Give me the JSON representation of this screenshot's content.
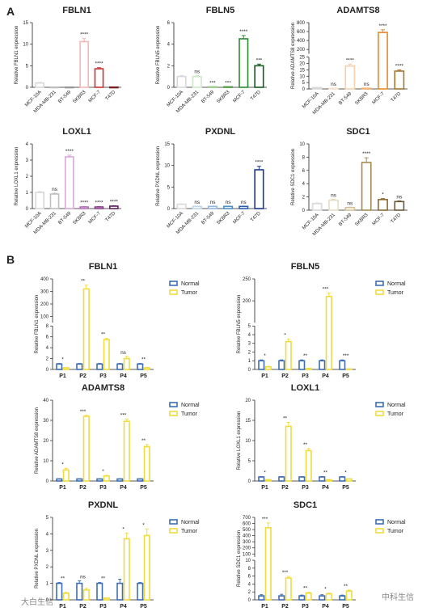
{
  "panel_labels": {
    "a": "A",
    "b": "B"
  },
  "watermarks": {
    "left": "大白生信",
    "right": "中科生信"
  },
  "legend": {
    "normal": "Normal",
    "tumor": "Tumor"
  },
  "colors": {
    "normal": "#3f6eb4",
    "tumor": "#f2dc3c"
  },
  "chart_data": [
    {
      "type": "bar",
      "title": "FBLN1",
      "ylabel": "Relative FBLN1 expression",
      "categories": [
        "MCF-10A",
        "MDA-MB-231",
        "BT-549",
        "SKBR3",
        "MCF-7",
        "T47D"
      ],
      "values": [
        1.0,
        0.05,
        0.05,
        10.6,
        4.3,
        0.05
      ],
      "errors": [
        0.15,
        0,
        0,
        0.7,
        0.25,
        0
      ],
      "significance": [
        "",
        "",
        "",
        "****",
        "****",
        ""
      ],
      "colors": [
        "#d9d9d9",
        "#bfbfbf",
        "#999999",
        "#f4b6b6",
        "#cc3333",
        "#7a1f1f"
      ],
      "ylim": [
        0,
        15
      ],
      "yticks": [
        0,
        5,
        10,
        15
      ]
    },
    {
      "type": "bar",
      "title": "FBLN5",
      "ylabel": "Relative FBLN5 expression",
      "categories": [
        "MCF-10A",
        "MDA-MB-231",
        "BT-549",
        "SKBR3",
        "MCF-7",
        "T47D"
      ],
      "values": [
        1.0,
        1.0,
        0.05,
        0.05,
        4.5,
        2.0
      ],
      "errors": [
        0.1,
        0.1,
        0,
        0,
        0.3,
        0.15
      ],
      "significance": [
        "",
        "ns",
        "***",
        "***",
        "****",
        "***"
      ],
      "colors": [
        "#d9d9d9",
        "#cfe8c9",
        "#9ccc8c",
        "#5aa24a",
        "#2a8a33",
        "#145a1e"
      ],
      "ylim": [
        0,
        6
      ],
      "yticks": [
        0,
        2,
        4,
        6
      ]
    },
    {
      "type": "bar",
      "title": "ADAMTS8",
      "ylabel": "Relative ADAMTS8 expression",
      "categories": [
        "MCF-10A",
        "MDA-MB-231",
        "BT-549",
        "SKBR3",
        "MCF-7",
        "T47D"
      ],
      "values": [
        1.0,
        0.5,
        18,
        0.5,
        580,
        14
      ],
      "errors": [
        0.1,
        0.1,
        1.5,
        0.1,
        60,
        1.0
      ],
      "significance": [
        "",
        "ns",
        "****",
        "ns",
        "****",
        "****"
      ],
      "colors": [
        "#d9d9d9",
        "#f6e3cf",
        "#f7d0a8",
        "#f0b070",
        "#e98a2a",
        "#a8742e"
      ],
      "ylim": [
        0,
        800
      ],
      "yticks": [
        0,
        5,
        10,
        15,
        20,
        25,
        200,
        400,
        600,
        800
      ],
      "broken": [
        25,
        100
      ]
    },
    {
      "type": "bar",
      "title": "LOXL1",
      "ylabel": "Relative LOXL1 expression",
      "categories": [
        "MCF-10A",
        "MDA-MB-231",
        "BT-549",
        "SKBR3",
        "MCF-7",
        "T47D"
      ],
      "values": [
        1.0,
        0.9,
        3.2,
        0.1,
        0.1,
        0.15
      ],
      "errors": [
        0.05,
        0.05,
        0.1,
        0.02,
        0.02,
        0.02
      ],
      "significance": [
        "",
        "ns",
        "****",
        "****",
        "****",
        "****"
      ],
      "colors": [
        "#d9d9d9",
        "#bfbfbf",
        "#d7a8d9",
        "#b86ab8",
        "#8e3a8e",
        "#5e1f5e"
      ],
      "ylim": [
        0,
        4
      ],
      "yticks": [
        0,
        1,
        2,
        3,
        4
      ]
    },
    {
      "type": "bar",
      "title": "PXDNL",
      "ylabel": "Relative PXDNL expression",
      "categories": [
        "MCF-10A",
        "MDA-MB-231",
        "BT-549",
        "SKBR3",
        "MCF-7",
        "T47D"
      ],
      "values": [
        1.0,
        0.5,
        0.5,
        0.5,
        0.5,
        9.0
      ],
      "errors": [
        0.1,
        0.05,
        0.05,
        0.05,
        0.05,
        0.8
      ],
      "significance": [
        "",
        "ns",
        "ns",
        "ns",
        "ns",
        "****"
      ],
      "colors": [
        "#d9d9d9",
        "#bfd6ea",
        "#8fb8dc",
        "#4f8fc8",
        "#2c5fa8",
        "#1a3a8a"
      ],
      "ylim": [
        0,
        15
      ],
      "yticks": [
        0,
        5,
        10,
        15
      ]
    },
    {
      "type": "bar",
      "title": "SDC1",
      "ylabel": "Relative SDC1 expression",
      "categories": [
        "MCF-10A",
        "MDA-MB-231",
        "BT-549",
        "SKBR3",
        "MCF-7",
        "T47D"
      ],
      "values": [
        1.0,
        1.5,
        0.4,
        7.2,
        1.6,
        1.3
      ],
      "errors": [
        0.1,
        0.15,
        0.05,
        0.7,
        0.15,
        0.1
      ],
      "significance": [
        "",
        "ns",
        "ns",
        "****",
        "*",
        "ns"
      ],
      "colors": [
        "#d9d9d9",
        "#e6dcc3",
        "#d4c196",
        "#a88c4e",
        "#8a6a2e",
        "#6b5a3a"
      ],
      "ylim": [
        0,
        10
      ],
      "yticks": [
        0,
        2,
        4,
        6,
        8,
        10
      ]
    },
    {
      "type": "bar",
      "title": "FBLN1",
      "ylabel": "Relative FBLN1 expression",
      "categories": [
        "P1",
        "P2",
        "P3",
        "P4",
        "P5"
      ],
      "series": [
        {
          "name": "Normal",
          "values": [
            1.0,
            1.0,
            1.0,
            1.0,
            1.0
          ],
          "errors": [
            0.1,
            0.1,
            0.1,
            0.1,
            0.1
          ]
        },
        {
          "name": "Tumor",
          "values": [
            0.3,
            320,
            5.5,
            2.0,
            0.3
          ],
          "errors": [
            0.05,
            30,
            0.2,
            0.4,
            0.05
          ]
        }
      ],
      "significance": [
        "*",
        "**",
        "**",
        "ns",
        "**"
      ],
      "ylim": [
        0,
        400
      ],
      "yticks": [
        0,
        2,
        4,
        6,
        8,
        100,
        200,
        300,
        400
      ],
      "broken": [
        8,
        50
      ]
    },
    {
      "type": "bar",
      "title": "FBLN5",
      "ylabel": "Relative FBLN5 expression",
      "categories": [
        "P1",
        "P2",
        "P3",
        "P4",
        "P5"
      ],
      "series": [
        {
          "name": "Normal",
          "values": [
            1.0,
            1.0,
            1.0,
            1.0,
            1.0
          ],
          "errors": [
            0.1,
            0.1,
            0.1,
            0.1,
            0.1
          ]
        },
        {
          "name": "Tumor",
          "values": [
            0.3,
            3.2,
            0.1,
            210,
            0.05
          ],
          "errors": [
            0.05,
            0.3,
            0.02,
            8,
            0.01
          ]
        }
      ],
      "significance": [
        "*",
        "*",
        "**",
        "***",
        "***"
      ],
      "ylim": [
        0,
        250
      ],
      "yticks": [
        0,
        1,
        2,
        3,
        4,
        5,
        200,
        250
      ],
      "broken": [
        5,
        150
      ]
    },
    {
      "type": "bar",
      "title": "ADAMTS8",
      "ylabel": "Relative ADAMTS8 expression",
      "categories": [
        "P1",
        "P2",
        "P3",
        "P4",
        "P5"
      ],
      "series": [
        {
          "name": "Normal",
          "values": [
            1.0,
            1.0,
            1.0,
            1.0,
            1.0
          ],
          "errors": [
            0.1,
            0.1,
            0.1,
            0.1,
            0.1
          ]
        },
        {
          "name": "Tumor",
          "values": [
            5.5,
            32,
            2.5,
            29.5,
            17
          ],
          "errors": [
            0.8,
            0.5,
            0.3,
            1.2,
            1.0
          ]
        }
      ],
      "significance": [
        "*",
        "***",
        "*",
        "***",
        "**"
      ],
      "ylim": [
        0,
        40
      ],
      "yticks": [
        0,
        10,
        20,
        30,
        40
      ]
    },
    {
      "type": "bar",
      "title": "LOXL1",
      "ylabel": "Relative LOXL1 expression",
      "categories": [
        "P1",
        "P2",
        "P3",
        "P4",
        "P5"
      ],
      "series": [
        {
          "name": "Normal",
          "values": [
            1.0,
            1.0,
            1.0,
            1.0,
            1.0
          ],
          "errors": [
            0.1,
            0.1,
            0.1,
            0.1,
            0.1
          ]
        },
        {
          "name": "Tumor",
          "values": [
            0.3,
            13.5,
            7.5,
            0.3,
            0.5
          ],
          "errors": [
            0.05,
            1.0,
            0.5,
            0.05,
            0.05
          ]
        }
      ],
      "significance": [
        "*",
        "**",
        "**",
        "**",
        "*"
      ],
      "ylim": [
        0,
        20
      ],
      "yticks": [
        0,
        5,
        10,
        15,
        20
      ]
    },
    {
      "type": "bar",
      "title": "PXDNL",
      "ylabel": "Relative PXDNL expression",
      "categories": [
        "P1",
        "P2",
        "P3",
        "P4",
        "P5"
      ],
      "series": [
        {
          "name": "Normal",
          "values": [
            1.0,
            1.0,
            1.0,
            1.0,
            1.0
          ],
          "errors": [
            0.05,
            0.15,
            0.05,
            0.25,
            0.05
          ]
        },
        {
          "name": "Tumor",
          "values": [
            0.4,
            0.6,
            0.1,
            3.7,
            3.9
          ],
          "errors": [
            0.05,
            0.1,
            0.02,
            0.35,
            0.4
          ]
        }
      ],
      "significance": [
        "**",
        "ns",
        "**",
        "*",
        "*"
      ],
      "ylim": [
        0,
        5
      ],
      "yticks": [
        0,
        1,
        2,
        3,
        4,
        5
      ]
    },
    {
      "type": "bar",
      "title": "SDC1",
      "ylabel": "Relative SDC1 expression",
      "categories": [
        "P1",
        "P2",
        "P3",
        "P4",
        "P5"
      ],
      "series": [
        {
          "name": "Normal",
          "values": [
            1.0,
            1.0,
            1.0,
            1.0,
            1.0
          ],
          "errors": [
            0.3,
            0.4,
            0.2,
            0.3,
            0.2
          ]
        },
        {
          "name": "Tumor",
          "values": [
            530,
            5.5,
            1.7,
            1.5,
            2.2
          ],
          "errors": [
            80,
            0.4,
            0.2,
            0.2,
            0.3
          ]
        }
      ],
      "significance": [
        "***",
        "***",
        "**",
        "*",
        "**"
      ],
      "ylim": [
        0,
        700
      ],
      "yticks": [
        0,
        2,
        4,
        6,
        8,
        10,
        100,
        200,
        300,
        400,
        500,
        600,
        700
      ],
      "broken": [
        10,
        50
      ]
    }
  ]
}
